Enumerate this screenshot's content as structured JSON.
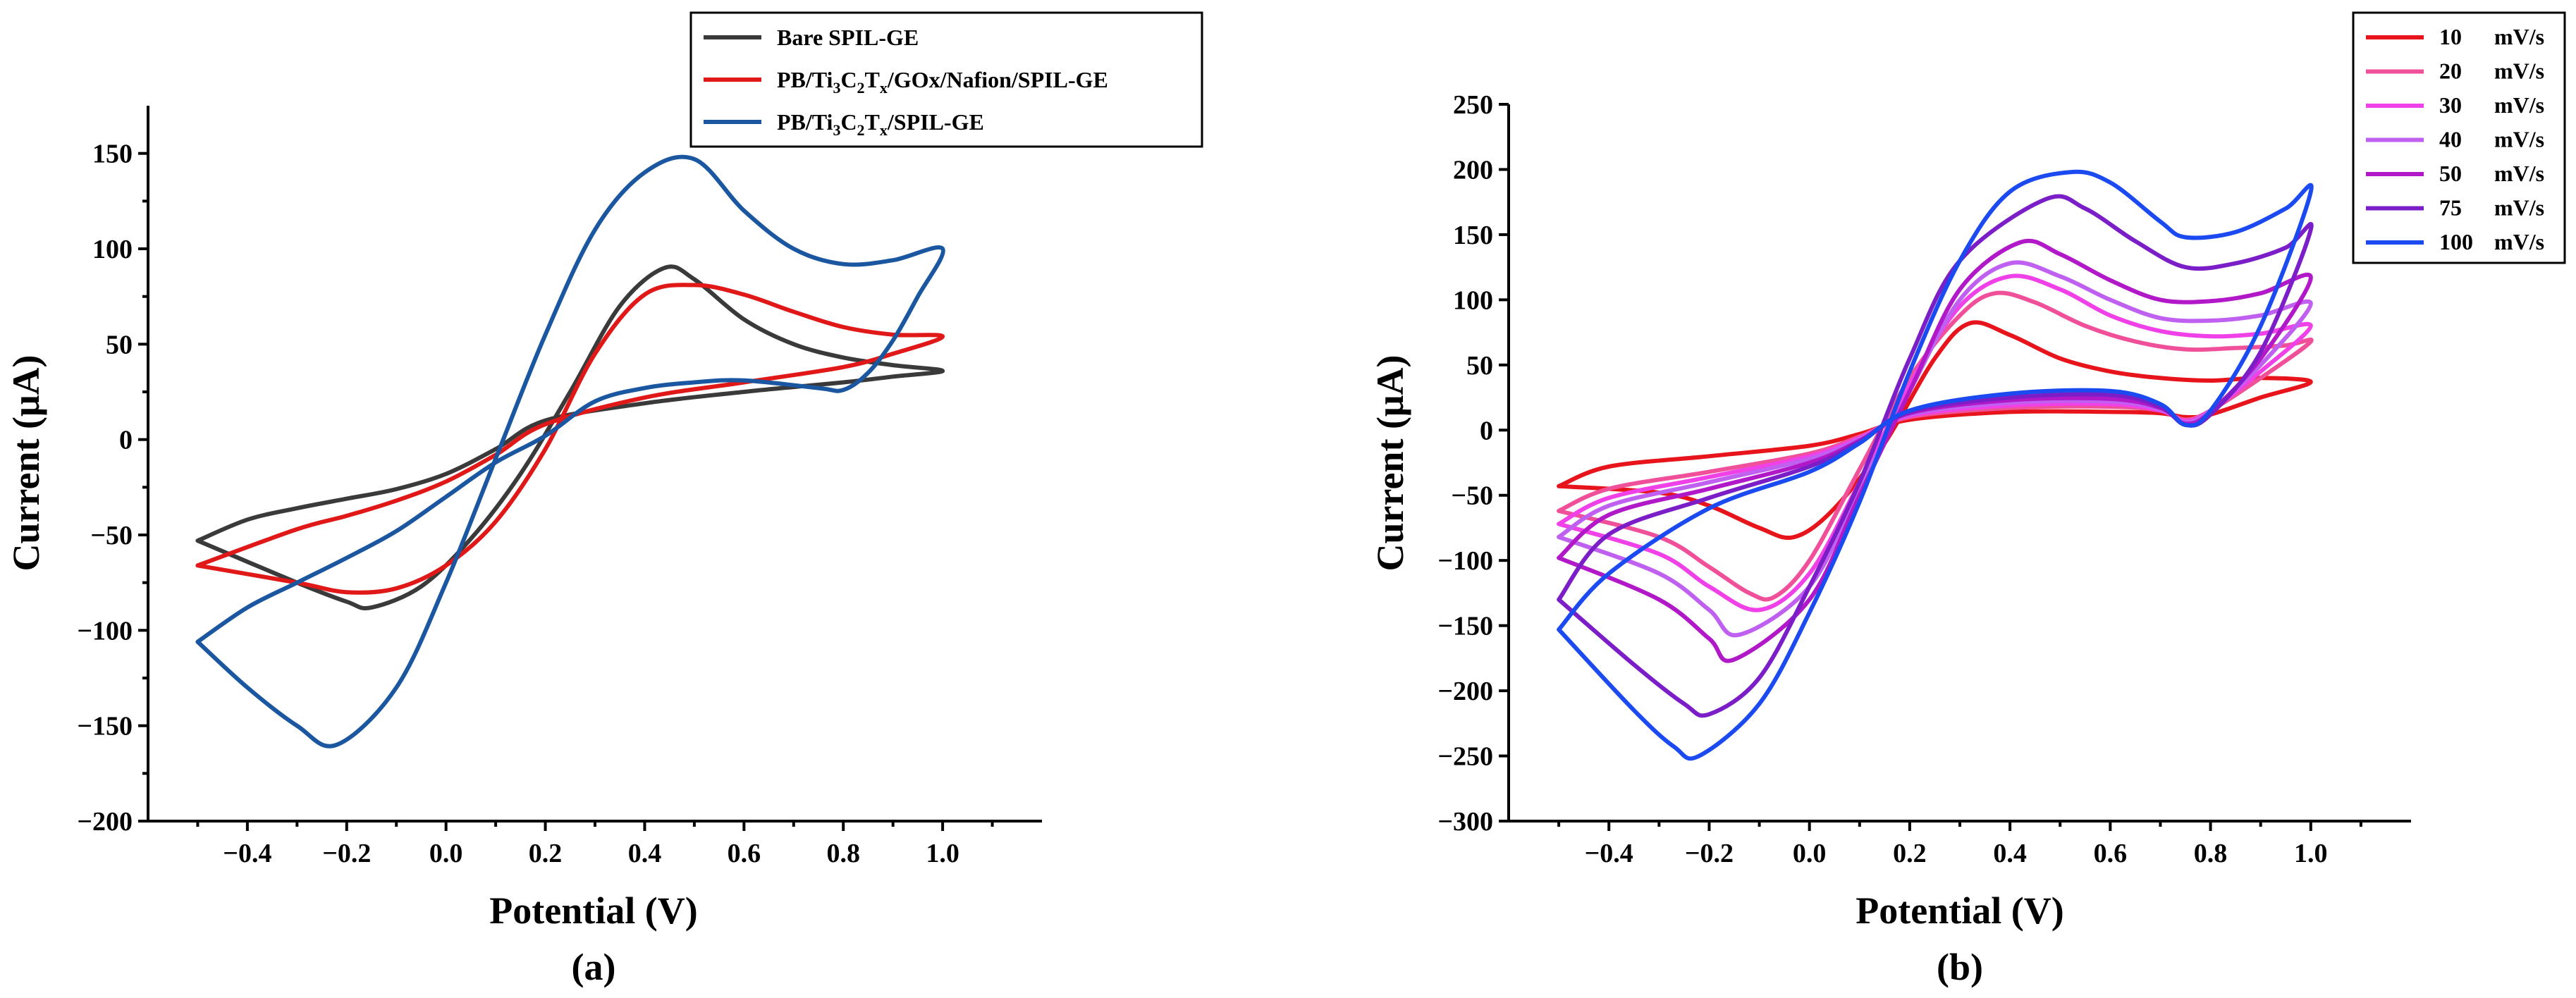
{
  "chart_data": [
    {
      "panel": "(a)",
      "type": "line",
      "xlabel": "Potential (V)",
      "ylabel": "Current (μA)",
      "xlim": [
        -0.6,
        1.2
      ],
      "ylim": [
        -200,
        175
      ],
      "x_ticks": [
        -0.4,
        -0.2,
        0.0,
        0.2,
        0.4,
        0.6,
        0.8,
        1.0
      ],
      "x_tick_labels": [
        "−0.4",
        "−0.2",
        "0.0",
        "0.2",
        "0.4",
        "0.6",
        "0.8",
        "1.0"
      ],
      "y_ticks": [
        -200,
        -150,
        -100,
        -50,
        0,
        50,
        100,
        150
      ],
      "y_tick_labels": [
        "−200",
        "−150",
        "−100",
        "−50",
        "0",
        "50",
        "100",
        "150"
      ],
      "legend_position": "top-right",
      "series": [
        {
          "name": "Bare SPIL-GE",
          "color": "#3a3a3a",
          "legend_parts": [
            [
              "Bare SPIL-GE",
              ""
            ]
          ],
          "x": [
            -0.5,
            -0.3,
            -0.2,
            -0.15,
            -0.05,
            0.05,
            0.15,
            0.25,
            0.35,
            0.44,
            0.5,
            0.6,
            0.7,
            0.8,
            0.9,
            1.0,
            0.9,
            0.8,
            0.6,
            0.4,
            0.2,
            0.1,
            0.0,
            -0.1,
            -0.2,
            -0.3,
            -0.4,
            -0.5
          ],
          "y": [
            -53,
            -75,
            -85,
            -88,
            -77,
            -52,
            -18,
            25,
            70,
            90,
            84,
            63,
            50,
            43,
            39,
            36,
            33,
            30,
            25,
            19,
            10,
            -5,
            -18,
            -26,
            -31,
            -36,
            -42,
            -53
          ]
        },
        {
          "name": "PB/Ti3C2Tx/GOx/Nafion/SPIL-GE",
          "color": "#e01818",
          "legend_parts": [
            [
              "PB/Ti",
              ""
            ],
            [
              "3",
              "sub"
            ],
            [
              "C",
              ""
            ],
            [
              "2",
              "sub"
            ],
            [
              "T",
              ""
            ],
            [
              "x",
              "sub"
            ],
            [
              "/GOx/Nafion/SPIL-GE",
              ""
            ]
          ],
          "x": [
            -0.5,
            -0.3,
            -0.2,
            -0.1,
            0.0,
            0.1,
            0.2,
            0.3,
            0.4,
            0.5,
            0.6,
            0.7,
            0.8,
            0.9,
            1.0,
            0.9,
            0.8,
            0.6,
            0.4,
            0.2,
            0.1,
            0.0,
            -0.1,
            -0.2,
            -0.3,
            -0.5
          ],
          "y": [
            -66,
            -75,
            -80,
            -78,
            -66,
            -43,
            -5,
            45,
            76,
            81,
            76,
            67,
            59,
            55,
            54,
            45,
            38,
            30,
            22,
            8,
            -8,
            -22,
            -32,
            -40,
            -47,
            -66
          ]
        },
        {
          "name": "PB/Ti3C2Tx/SPIL-GE",
          "color": "#1a57a0",
          "legend_parts": [
            [
              "PB/Ti",
              ""
            ],
            [
              "3",
              "sub"
            ],
            [
              "C",
              ""
            ],
            [
              "2",
              "sub"
            ],
            [
              "T",
              ""
            ],
            [
              "x",
              "sub"
            ],
            [
              "/SPIL-GE",
              ""
            ]
          ],
          "x": [
            -0.5,
            -0.4,
            -0.3,
            -0.22,
            -0.1,
            0.0,
            0.1,
            0.2,
            0.3,
            0.4,
            0.5,
            0.6,
            0.7,
            0.8,
            0.9,
            1.0,
            0.95,
            0.9,
            0.85,
            0.8,
            0.75,
            0.6,
            0.5,
            0.4,
            0.3,
            0.2,
            0.1,
            0.0,
            -0.1,
            -0.2,
            -0.3,
            -0.4,
            -0.5
          ],
          "y": [
            -106,
            -130,
            -150,
            -160,
            -130,
            -75,
            -10,
            55,
            110,
            140,
            147,
            120,
            100,
            92,
            94,
            100,
            75,
            52,
            35,
            26,
            27,
            31,
            30,
            27,
            20,
            2,
            -12,
            -30,
            -48,
            -62,
            -75,
            -88,
            -106
          ]
        }
      ]
    },
    {
      "panel": "(b)",
      "type": "line",
      "xlabel": "Potential (V)",
      "ylabel": "Current (μA)",
      "xlim": [
        -0.6,
        1.2
      ],
      "ylim": [
        -300,
        250
      ],
      "x_ticks": [
        -0.4,
        -0.2,
        0.0,
        0.2,
        0.4,
        0.6,
        0.8,
        1.0
      ],
      "x_tick_labels": [
        "−0.4",
        "−0.2",
        "0.0",
        "0.2",
        "0.4",
        "0.6",
        "0.8",
        "1.0"
      ],
      "y_ticks": [
        -300,
        -250,
        -200,
        -150,
        -100,
        -50,
        0,
        50,
        100,
        150,
        200,
        250
      ],
      "y_tick_labels": [
        "−300",
        "−250",
        "−200",
        "−150",
        "−100",
        "−50",
        "0",
        "50",
        "100",
        "150",
        "200",
        "250"
      ],
      "legend_position": "top-right",
      "series": [
        {
          "name": "10 mV/s",
          "rate": "10",
          "unit": "mV/s",
          "color": "#e8141c",
          "x": [
            -0.5,
            -0.3,
            -0.2,
            -0.1,
            -0.03,
            0.05,
            0.15,
            0.25,
            0.32,
            0.4,
            0.5,
            0.6,
            0.7,
            0.8,
            0.9,
            1.0,
            0.9,
            0.8,
            0.75,
            0.7,
            0.6,
            0.4,
            0.2,
            0.1,
            0.0,
            -0.2,
            -0.4,
            -0.5
          ],
          "y": [
            -43,
            -48,
            -58,
            -75,
            -82,
            -60,
            -10,
            55,
            82,
            73,
            55,
            45,
            40,
            38,
            40,
            37,
            25,
            12,
            10,
            13,
            14,
            14,
            8,
            -3,
            -12,
            -20,
            -28,
            -43
          ]
        },
        {
          "name": "20 mV/s",
          "rate": "20",
          "unit": "mV/s",
          "color": "#f0509a",
          "x": [
            -0.5,
            -0.3,
            -0.2,
            -0.12,
            -0.07,
            0.0,
            0.1,
            0.2,
            0.3,
            0.37,
            0.45,
            0.55,
            0.65,
            0.75,
            0.85,
            0.95,
            1.0,
            0.9,
            0.8,
            0.75,
            0.7,
            0.6,
            0.4,
            0.2,
            0.1,
            0.0,
            -0.2,
            -0.4,
            -0.5
          ],
          "y": [
            -62,
            -82,
            -105,
            -125,
            -128,
            -100,
            -30,
            40,
            88,
            105,
            98,
            80,
            68,
            62,
            63,
            65,
            68,
            40,
            15,
            8,
            15,
            18,
            17,
            10,
            -5,
            -18,
            -32,
            -45,
            -62
          ]
        },
        {
          "name": "30 mV/s",
          "rate": "30",
          "unit": "mV/s",
          "color": "#f040e8",
          "x": [
            -0.5,
            -0.3,
            -0.2,
            -0.1,
            0.0,
            0.1,
            0.2,
            0.3,
            0.4,
            0.5,
            0.6,
            0.7,
            0.8,
            0.9,
            1.0,
            0.9,
            0.8,
            0.75,
            0.7,
            0.6,
            0.4,
            0.2,
            0.1,
            0.0,
            -0.2,
            -0.4,
            -0.5
          ],
          "y": [
            -72,
            -95,
            -120,
            -138,
            -110,
            -40,
            35,
            95,
            118,
            108,
            88,
            76,
            72,
            74,
            80,
            45,
            15,
            7,
            15,
            20,
            19,
            11,
            -6,
            -20,
            -36,
            -52,
            -72
          ]
        },
        {
          "name": "40 mV/s",
          "rate": "40",
          "unit": "mV/s",
          "color": "#c060f0",
          "x": [
            -0.5,
            -0.3,
            -0.2,
            -0.14,
            0.0,
            0.1,
            0.2,
            0.3,
            0.4,
            0.5,
            0.6,
            0.7,
            0.8,
            0.9,
            1.0,
            0.9,
            0.8,
            0.75,
            0.7,
            0.6,
            0.4,
            0.2,
            0.1,
            0.0,
            -0.2,
            -0.4,
            -0.5
          ],
          "y": [
            -82,
            -110,
            -138,
            -157,
            -120,
            -45,
            30,
            100,
            128,
            118,
            100,
            86,
            84,
            88,
            97,
            50,
            15,
            6,
            16,
            22,
            21,
            12,
            -7,
            -22,
            -40,
            -58,
            -82
          ]
        },
        {
          "name": "50 mV/s",
          "rate": "50",
          "unit": "mV/s",
          "color": "#b018c8",
          "x": [
            -0.5,
            -0.3,
            -0.2,
            -0.15,
            0.0,
            0.1,
            0.2,
            0.3,
            0.42,
            0.5,
            0.6,
            0.7,
            0.8,
            0.9,
            1.0,
            0.9,
            0.8,
            0.75,
            0.7,
            0.6,
            0.4,
            0.2,
            0.1,
            0.0,
            -0.2,
            -0.4,
            -0.5
          ],
          "y": [
            -98,
            -130,
            -160,
            -176,
            -130,
            -50,
            30,
            108,
            144,
            135,
            115,
            100,
            99,
            105,
            117,
            55,
            14,
            5,
            17,
            24,
            23,
            13,
            -8,
            -25,
            -45,
            -65,
            -98
          ]
        },
        {
          "name": "75 mV/s",
          "rate": "75",
          "unit": "mV/s",
          "color": "#7c1ec8",
          "x": [
            -0.5,
            -0.35,
            -0.25,
            -0.2,
            -0.1,
            0.0,
            0.1,
            0.2,
            0.3,
            0.47,
            0.55,
            0.65,
            0.75,
            0.85,
            0.95,
            1.0,
            0.9,
            0.8,
            0.75,
            0.7,
            0.6,
            0.4,
            0.2,
            0.1,
            0.0,
            -0.2,
            -0.4,
            -0.5
          ],
          "y": [
            -130,
            -180,
            -210,
            -218,
            -190,
            -120,
            -40,
            55,
            130,
            177,
            170,
            145,
            125,
            128,
            140,
            154,
            60,
            12,
            4,
            18,
            27,
            25,
            14,
            -9,
            -28,
            -52,
            -80,
            -130
          ]
        },
        {
          "name": "100 mV/s",
          "rate": "100",
          "unit": "mV/s",
          "color": "#1a4af0",
          "x": [
            -0.5,
            -0.35,
            -0.27,
            -0.22,
            -0.1,
            0.0,
            0.1,
            0.2,
            0.3,
            0.4,
            0.52,
            0.6,
            0.7,
            0.75,
            0.85,
            0.95,
            1.0,
            0.9,
            0.8,
            0.75,
            0.7,
            0.6,
            0.4,
            0.2,
            0.1,
            0.0,
            -0.2,
            -0.4,
            -0.5
          ],
          "y": [
            -153,
            -215,
            -243,
            -250,
            -210,
            -140,
            -55,
            45,
            130,
            183,
            198,
            190,
            160,
            148,
            152,
            170,
            183,
            80,
            15,
            4,
            20,
            30,
            28,
            15,
            -10,
            -32,
            -60,
            -110,
            -153
          ]
        }
      ]
    }
  ]
}
